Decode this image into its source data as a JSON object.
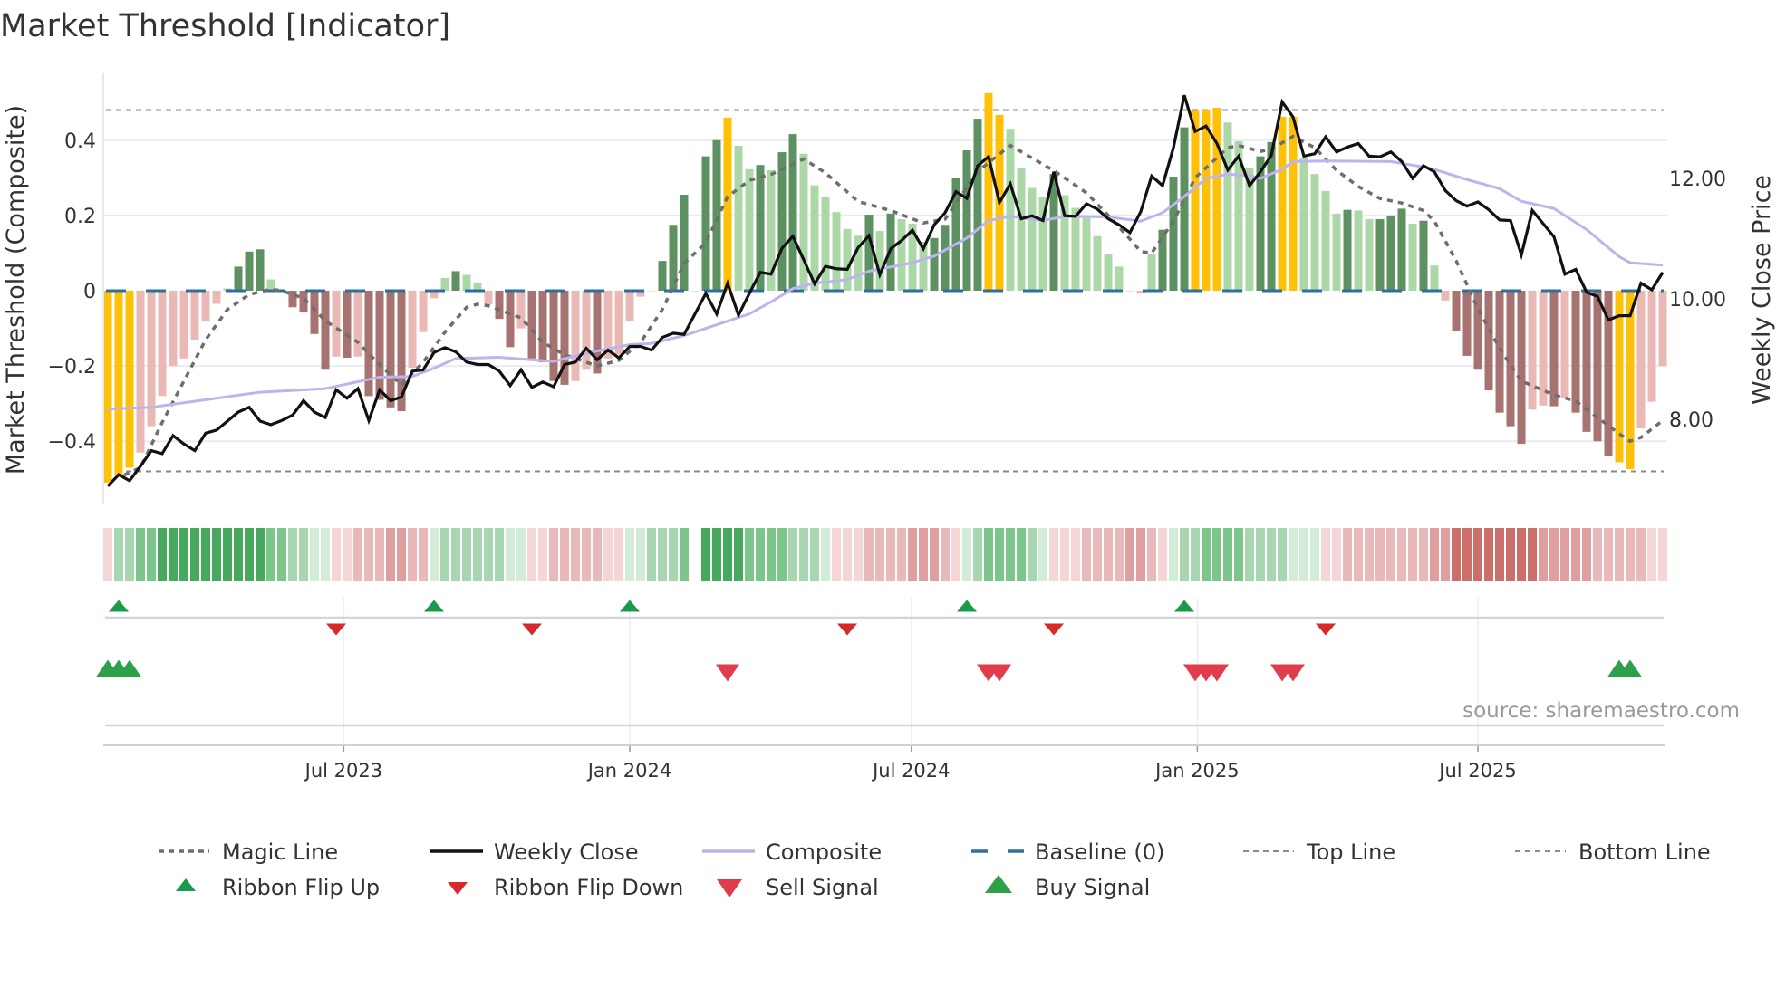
{
  "title": "Market Threshold [Indicator]",
  "source": "source: sharemaestro.com",
  "chart_data": {
    "type": "bar",
    "title": "Market Threshold [Indicator]",
    "x_unit": "week index (weekly bars)",
    "xlim": [
      0,
      143
    ],
    "x_ticks": [
      {
        "label": "Jul 2023",
        "week": 21.7
      },
      {
        "label": "Jan 2024",
        "week": 48
      },
      {
        "label": "Jul 2024",
        "week": 73.9
      },
      {
        "label": "Jan 2025",
        "week": 100.2
      },
      {
        "label": "Jul 2025",
        "week": 126
      }
    ],
    "y_left": {
      "label": "Market Threshold (Composite)",
      "ylim": [
        -0.55,
        0.58
      ],
      "ticks": [
        {
          "value": 0.4,
          "label": "0.4"
        },
        {
          "value": 0.2,
          "label": "0.2"
        },
        {
          "value": 0,
          "label": "0"
        },
        {
          "value": -0.2,
          "label": "−0.2"
        },
        {
          "value": -0.4,
          "label": "−0.4"
        }
      ]
    },
    "y_right": {
      "label": "Weekly Close Price",
      "ticks": [
        {
          "value": 12,
          "label": "12.00"
        },
        {
          "value": 10,
          "label": "10.00"
        },
        {
          "value": 8,
          "label": "8.00"
        }
      ]
    },
    "grid": true,
    "top_line": 0.48,
    "bottom_line": -0.48,
    "baseline": 0,
    "colors": {
      "Y": "#ffc107",
      "DG": "#5e9162",
      "LG": "#acd8a8",
      "DR": "#a67370",
      "LR": "#eab9b6",
      "magic": "#6e6e6e",
      "close": "#111111",
      "composite": "#bdb4ec",
      "baseline": "#2f6f9c",
      "topbottom": "#8a8a8a",
      "flip_up": "#1a9a4a",
      "flip_down": "#d62a2a",
      "sell": "#e03c4c",
      "buy": "#2ea04a",
      "ribbon_pos": [
        "#d3ecd8",
        "#a8d6b0",
        "#7cc58b",
        "#47a95e"
      ],
      "ribbon_neg": [
        "#f4d6d6",
        "#e9b8b8",
        "#df9f9e",
        "#cc6e6a"
      ]
    },
    "composite_bars": {
      "values": [
        -0.51,
        -0.49,
        -0.47,
        -0.43,
        -0.36,
        -0.28,
        -0.2,
        -0.18,
        -0.13,
        -0.08,
        -0.035,
        0.006,
        0.064,
        0.104,
        0.11,
        0.03,
        0.002,
        -0.044,
        -0.058,
        -0.115,
        -0.21,
        -0.175,
        -0.178,
        -0.175,
        -0.28,
        -0.29,
        -0.31,
        -0.32,
        -0.205,
        -0.11,
        -0.02,
        0.034,
        0.052,
        0.042,
        0.021,
        -0.036,
        -0.075,
        -0.15,
        -0.1,
        -0.18,
        -0.19,
        -0.24,
        -0.25,
        -0.24,
        -0.21,
        -0.22,
        -0.18,
        -0.17,
        -0.08,
        -0.016,
        0,
        0.079,
        0.175,
        0.255,
        0,
        0.357,
        0.4,
        0.46,
        0.385,
        0.323,
        0.334,
        0.32,
        0.368,
        0.416,
        0.364,
        0.28,
        0.25,
        0.209,
        0.164,
        0.146,
        0.202,
        0.159,
        0.205,
        0.19,
        0.178,
        0.13,
        0.14,
        0.175,
        0.3,
        0.373,
        0.457,
        0.525,
        0.467,
        0.43,
        0.327,
        0.273,
        0.25,
        0.31,
        0.254,
        0.22,
        0.193,
        0.145,
        0.096,
        0.064,
        0,
        -0.008,
        0.098,
        0.162,
        0.303,
        0.434,
        0.478,
        0.48,
        0.486,
        0.447,
        0.397,
        0.325,
        0.357,
        0.395,
        0.462,
        0.462,
        0.353,
        0.31,
        0.265,
        0.205,
        0.215,
        0.213,
        0.19,
        0.19,
        0.2,
        0.218,
        0.178,
        0.186,
        0.067,
        -0.026,
        -0.108,
        -0.173,
        -0.21,
        -0.265,
        -0.324,
        -0.36,
        -0.407,
        -0.316,
        -0.305,
        -0.307,
        -0.285,
        -0.324,
        -0.375,
        -0.4,
        -0.44,
        -0.456,
        -0.474,
        -0.366,
        -0.295,
        -0.2
      ],
      "colors": [
        "Y",
        "Y",
        "Y",
        "LR",
        "LR",
        "LR",
        "LR",
        "LR",
        "LR",
        "LR",
        "LR",
        "LG",
        "DG",
        "DG",
        "DG",
        "LG",
        "LG",
        "DR",
        "DR",
        "DR",
        "DR",
        "LR",
        "DR",
        "LR",
        "DR",
        "DR",
        "DR",
        "DR",
        "LR",
        "LR",
        "LR",
        "LG",
        "DG",
        "LG",
        "LG",
        "LR",
        "DR",
        "DR",
        "LR",
        "DR",
        "DR",
        "DR",
        "DR",
        "LR",
        "LR",
        "DR",
        "LR",
        "LR",
        "LR",
        "LR",
        "LG",
        "DG",
        "DG",
        "DG",
        "LG",
        "DG",
        "DG",
        "Y",
        "LG",
        "LG",
        "DG",
        "LG",
        "DG",
        "DG",
        "LG",
        "LG",
        "LG",
        "LG",
        "LG",
        "LG",
        "DG",
        "LG",
        "DG",
        "LG",
        "LG",
        "LG",
        "DG",
        "DG",
        "DG",
        "DG",
        "DG",
        "Y",
        "Y",
        "LG",
        "LG",
        "LG",
        "LG",
        "DG",
        "LG",
        "LG",
        "LG",
        "LG",
        "LG",
        "LG",
        "LG",
        "LR",
        "LG",
        "DG",
        "DG",
        "DG",
        "Y",
        "Y",
        "Y",
        "LG",
        "LG",
        "LG",
        "DG",
        "DG",
        "Y",
        "Y",
        "LG",
        "LG",
        "LG",
        "LG",
        "DG",
        "LG",
        "LG",
        "DG",
        "DG",
        "DG",
        "LG",
        "DG",
        "LG",
        "LR",
        "DR",
        "DR",
        "DR",
        "DR",
        "DR",
        "DR",
        "DR",
        "LR",
        "LR",
        "DR",
        "LR",
        "DR",
        "DR",
        "DR",
        "DR",
        "Y",
        "Y",
        "LR",
        "LR",
        "LR"
      ]
    },
    "weekly_close": [
      6.89,
      7.08,
      6.98,
      7.22,
      7.48,
      7.43,
      7.73,
      7.59,
      7.48,
      7.77,
      7.82,
      7.97,
      8.12,
      8.2,
      7.97,
      7.91,
      7.98,
      8.07,
      8.31,
      8.12,
      8.03,
      8.49,
      8.35,
      8.51,
      7.98,
      8.49,
      8.31,
      8.37,
      8.8,
      8.82,
      9.11,
      9.19,
      9.12,
      8.95,
      8.91,
      8.91,
      8.8,
      8.56,
      8.82,
      8.53,
      8.62,
      8.54,
      8.91,
      8.95,
      9.18,
      8.99,
      9.15,
      9.02,
      9.21,
      9.21,
      9.15,
      9.36,
      9.43,
      9.41,
      9.75,
      10.09,
      9.75,
      10.26,
      9.73,
      10.09,
      10.44,
      10.41,
      10.84,
      11.04,
      10.65,
      10.25,
      10.54,
      10.5,
      10.49,
      10.85,
      11.05,
      10.4,
      10.83,
      10.97,
      11.14,
      10.83,
      11.23,
      11.43,
      11.78,
      11.67,
      12.21,
      12.36,
      11.6,
      11.91,
      11.33,
      11.38,
      11.3,
      12.11,
      11.38,
      11.37,
      11.58,
      11.49,
      11.33,
      11.23,
      11.1,
      11.45,
      12.04,
      11.88,
      12.51,
      13.38,
      12.78,
      12.87,
      12.58,
      12.14,
      12.37,
      11.88,
      12.11,
      12.38,
      13.27,
      13.02,
      12.37,
      12.41,
      12.69,
      12.44,
      12.52,
      12.58,
      12.37,
      12.36,
      12.44,
      12.28,
      12.0,
      12.21,
      12.11,
      11.8,
      11.63,
      11.54,
      11.61,
      11.48,
      11.31,
      11.3,
      10.73,
      11.47,
      11.25,
      11.03,
      10.41,
      10.49,
      10.11,
      10.04,
      9.65,
      9.72,
      9.72,
      10.26,
      10.15,
      10.44
    ],
    "composite_line": [
      [
        0,
        8.17
      ],
      [
        4,
        8.2
      ],
      [
        10,
        8.35
      ],
      [
        14,
        8.45
      ],
      [
        20,
        8.51
      ],
      [
        25,
        8.7
      ],
      [
        28,
        8.71
      ],
      [
        30,
        8.85
      ],
      [
        32,
        9.01
      ],
      [
        36,
        9.03
      ],
      [
        41,
        8.96
      ],
      [
        44,
        9.1
      ],
      [
        48,
        9.24
      ],
      [
        50,
        9.26
      ],
      [
        53,
        9.39
      ],
      [
        56,
        9.57
      ],
      [
        59,
        9.75
      ],
      [
        61,
        9.95
      ],
      [
        63,
        10.17
      ],
      [
        65,
        10.26
      ],
      [
        68,
        10.32
      ],
      [
        70,
        10.46
      ],
      [
        72,
        10.53
      ],
      [
        74,
        10.6
      ],
      [
        76,
        10.71
      ],
      [
        79,
        11.01
      ],
      [
        81,
        11.3
      ],
      [
        83,
        11.37
      ],
      [
        86,
        11.3
      ],
      [
        88,
        11.37
      ],
      [
        92,
        11.36
      ],
      [
        95,
        11.29
      ],
      [
        97,
        11.43
      ],
      [
        99,
        11.7
      ],
      [
        101,
        12.0
      ],
      [
        103,
        12.07
      ],
      [
        105,
        12.05
      ],
      [
        106,
        12.0
      ],
      [
        108,
        12.15
      ],
      [
        109,
        12.28
      ],
      [
        112,
        12.29
      ],
      [
        118,
        12.28
      ],
      [
        121,
        12.19
      ],
      [
        122,
        12.15
      ],
      [
        125,
        11.98
      ],
      [
        128,
        11.83
      ],
      [
        130,
        11.62
      ],
      [
        133,
        11.5
      ],
      [
        136,
        11.15
      ],
      [
        139,
        10.7
      ],
      [
        140,
        10.6
      ],
      [
        143,
        10.56
      ]
    ],
    "magic_line": [
      [
        1.5,
        -0.49
      ],
      [
        3,
        -0.47
      ],
      [
        5,
        -0.35
      ],
      [
        7,
        -0.24
      ],
      [
        9,
        -0.13
      ],
      [
        11,
        -0.05
      ],
      [
        13,
        -0.01
      ],
      [
        15,
        0.004
      ],
      [
        16,
        0
      ],
      [
        18,
        -0.02
      ],
      [
        20,
        -0.08
      ],
      [
        23,
        -0.137
      ],
      [
        25,
        -0.197
      ],
      [
        27,
        -0.25
      ],
      [
        29,
        -0.19
      ],
      [
        31,
        -0.11
      ],
      [
        33,
        -0.044
      ],
      [
        34,
        -0.036
      ],
      [
        35,
        -0.04
      ],
      [
        38,
        -0.072
      ],
      [
        40,
        -0.137
      ],
      [
        42,
        -0.17
      ],
      [
        45,
        -0.2
      ],
      [
        47,
        -0.185
      ],
      [
        49,
        -0.137
      ],
      [
        51,
        -0.05
      ],
      [
        53,
        0.072
      ],
      [
        55,
        0.128
      ],
      [
        57,
        0.25
      ],
      [
        59,
        0.293
      ],
      [
        61,
        0.309
      ],
      [
        64,
        0.35
      ],
      [
        66,
        0.313
      ],
      [
        69,
        0.237
      ],
      [
        72,
        0.213
      ],
      [
        75,
        0.18
      ],
      [
        77,
        0.19
      ],
      [
        80,
        0.317
      ],
      [
        83,
        0.386
      ],
      [
        87,
        0.319
      ],
      [
        90,
        0.26
      ],
      [
        92,
        0.2
      ],
      [
        94,
        0.137
      ],
      [
        95,
        0.104
      ],
      [
        96,
        0.1
      ],
      [
        98,
        0.185
      ],
      [
        100,
        0.3
      ],
      [
        103,
        0.38
      ],
      [
        104,
        0.386
      ],
      [
        106,
        0.37
      ],
      [
        107,
        0.376
      ],
      [
        109,
        0.41
      ],
      [
        111,
        0.38
      ],
      [
        113,
        0.32
      ],
      [
        115,
        0.277
      ],
      [
        117,
        0.245
      ],
      [
        119,
        0.233
      ],
      [
        121,
        0.213
      ],
      [
        122,
        0.185
      ],
      [
        124,
        0.08
      ],
      [
        126,
        -0.048
      ],
      [
        128,
        -0.153
      ],
      [
        130,
        -0.24
      ],
      [
        133,
        -0.277
      ],
      [
        135,
        -0.293
      ],
      [
        137,
        -0.337
      ],
      [
        139,
        -0.38
      ],
      [
        140,
        -0.4
      ],
      [
        141,
        -0.39
      ],
      [
        143,
        -0.345
      ]
    ],
    "ribbon": [
      -1,
      2,
      2,
      3,
      3,
      4,
      4,
      4,
      4,
      4,
      4,
      4,
      4,
      4,
      4,
      3,
      3,
      2,
      2,
      1,
      1,
      -1,
      -1,
      -2,
      -2,
      -2,
      -3,
      -3,
      -2,
      -2,
      1,
      2,
      2,
      2,
      2,
      2,
      2,
      1,
      1,
      -1,
      -1,
      -2,
      -2,
      -2,
      -2,
      -2,
      -1,
      -1,
      1,
      1,
      2,
      2,
      2,
      3,
      0,
      4,
      4,
      4,
      4,
      3,
      3,
      3,
      3,
      2,
      2,
      2,
      1,
      -1,
      -1,
      -1,
      -2,
      -2,
      -2,
      -2,
      -3,
      -3,
      -3,
      -2,
      -1,
      1,
      2,
      3,
      3,
      3,
      3,
      2,
      1,
      -1,
      -1,
      -1,
      -2,
      -2,
      -2,
      -2,
      -3,
      -3,
      -2,
      -1,
      1,
      2,
      2,
      3,
      3,
      3,
      3,
      2,
      2,
      2,
      2,
      1,
      1,
      1,
      -1,
      -1,
      -2,
      -2,
      -2,
      -2,
      -2,
      -2,
      -2,
      -2,
      -3,
      -3,
      -4,
      -4,
      -4,
      -4,
      -4,
      -4,
      -4,
      -4,
      -3,
      -3,
      -3,
      -3,
      -3,
      -2,
      -2,
      -2,
      -2,
      -2,
      -1,
      -1
    ],
    "signals": {
      "ribbon_flip_up": [
        1,
        30,
        48,
        79,
        99
      ],
      "ribbon_flip_down": [
        21,
        39,
        68,
        87,
        112
      ],
      "sell": [
        57,
        81,
        82,
        100,
        101,
        102,
        108,
        109
      ],
      "buy": [
        0,
        1,
        2,
        139,
        140
      ]
    },
    "legend": [
      {
        "label": "Magic Line",
        "symbol": "dotted-line"
      },
      {
        "label": "Weekly Close",
        "symbol": "solid-line"
      },
      {
        "label": "Composite",
        "symbol": "lavender-line"
      },
      {
        "label": "Baseline (0)",
        "symbol": "dashed-blue-line"
      },
      {
        "label": "Top Line",
        "symbol": "thin-dashed-line"
      },
      {
        "label": "Bottom Line",
        "symbol": "thin-dashed-line"
      },
      {
        "label": "Ribbon Flip Up",
        "symbol": "up-triangle-small"
      },
      {
        "label": "Ribbon Flip Down",
        "symbol": "down-triangle-small"
      },
      {
        "label": "Sell Signal",
        "symbol": "down-triangle"
      },
      {
        "label": "Buy Signal",
        "symbol": "up-triangle"
      }
    ],
    "legend_position": "bottom"
  }
}
